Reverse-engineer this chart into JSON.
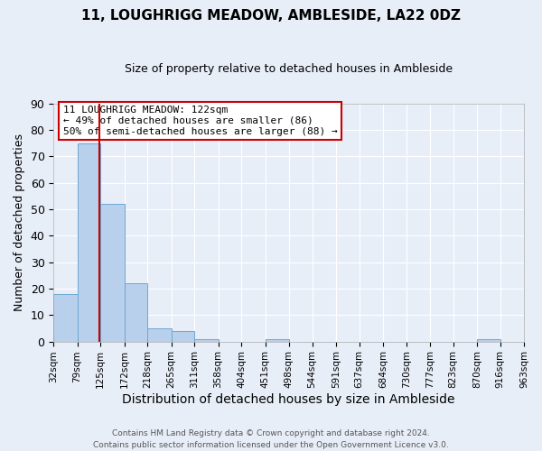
{
  "title": "11, LOUGHRIGG MEADOW, AMBLESIDE, LA22 0DZ",
  "subtitle": "Size of property relative to detached houses in Ambleside",
  "xlabel": "Distribution of detached houses by size in Ambleside",
  "ylabel": "Number of detached properties",
  "bin_edges": [
    32,
    79,
    125,
    172,
    218,
    265,
    311,
    358,
    404,
    451,
    498,
    544,
    591,
    637,
    684,
    730,
    777,
    823,
    870,
    916,
    963
  ],
  "bin_labels": [
    "32sqm",
    "79sqm",
    "125sqm",
    "172sqm",
    "218sqm",
    "265sqm",
    "311sqm",
    "358sqm",
    "404sqm",
    "451sqm",
    "498sqm",
    "544sqm",
    "591sqm",
    "637sqm",
    "684sqm",
    "730sqm",
    "777sqm",
    "823sqm",
    "870sqm",
    "916sqm",
    "963sqm"
  ],
  "counts": [
    18,
    75,
    52,
    22,
    5,
    4,
    1,
    0,
    0,
    1,
    0,
    0,
    0,
    0,
    0,
    0,
    0,
    0,
    1,
    0
  ],
  "bar_color": "#b8d0eb",
  "bar_edgecolor": "#6ea8d5",
  "property_size": 122,
  "vline_color": "#cc0000",
  "ylim": [
    0,
    90
  ],
  "yticks": [
    0,
    10,
    20,
    30,
    40,
    50,
    60,
    70,
    80,
    90
  ],
  "annotation_text": "11 LOUGHRIGG MEADOW: 122sqm\n← 49% of detached houses are smaller (86)\n50% of semi-detached houses are larger (88) →",
  "annotation_box_color": "#ffffff",
  "annotation_box_edgecolor": "#cc0000",
  "footer_line1": "Contains HM Land Registry data © Crown copyright and database right 2024.",
  "footer_line2": "Contains public sector information licensed under the Open Government Licence v3.0.",
  "background_color": "#e8eef8",
  "grid_color": "#ffffff",
  "title_fontsize": 11,
  "subtitle_fontsize": 9
}
